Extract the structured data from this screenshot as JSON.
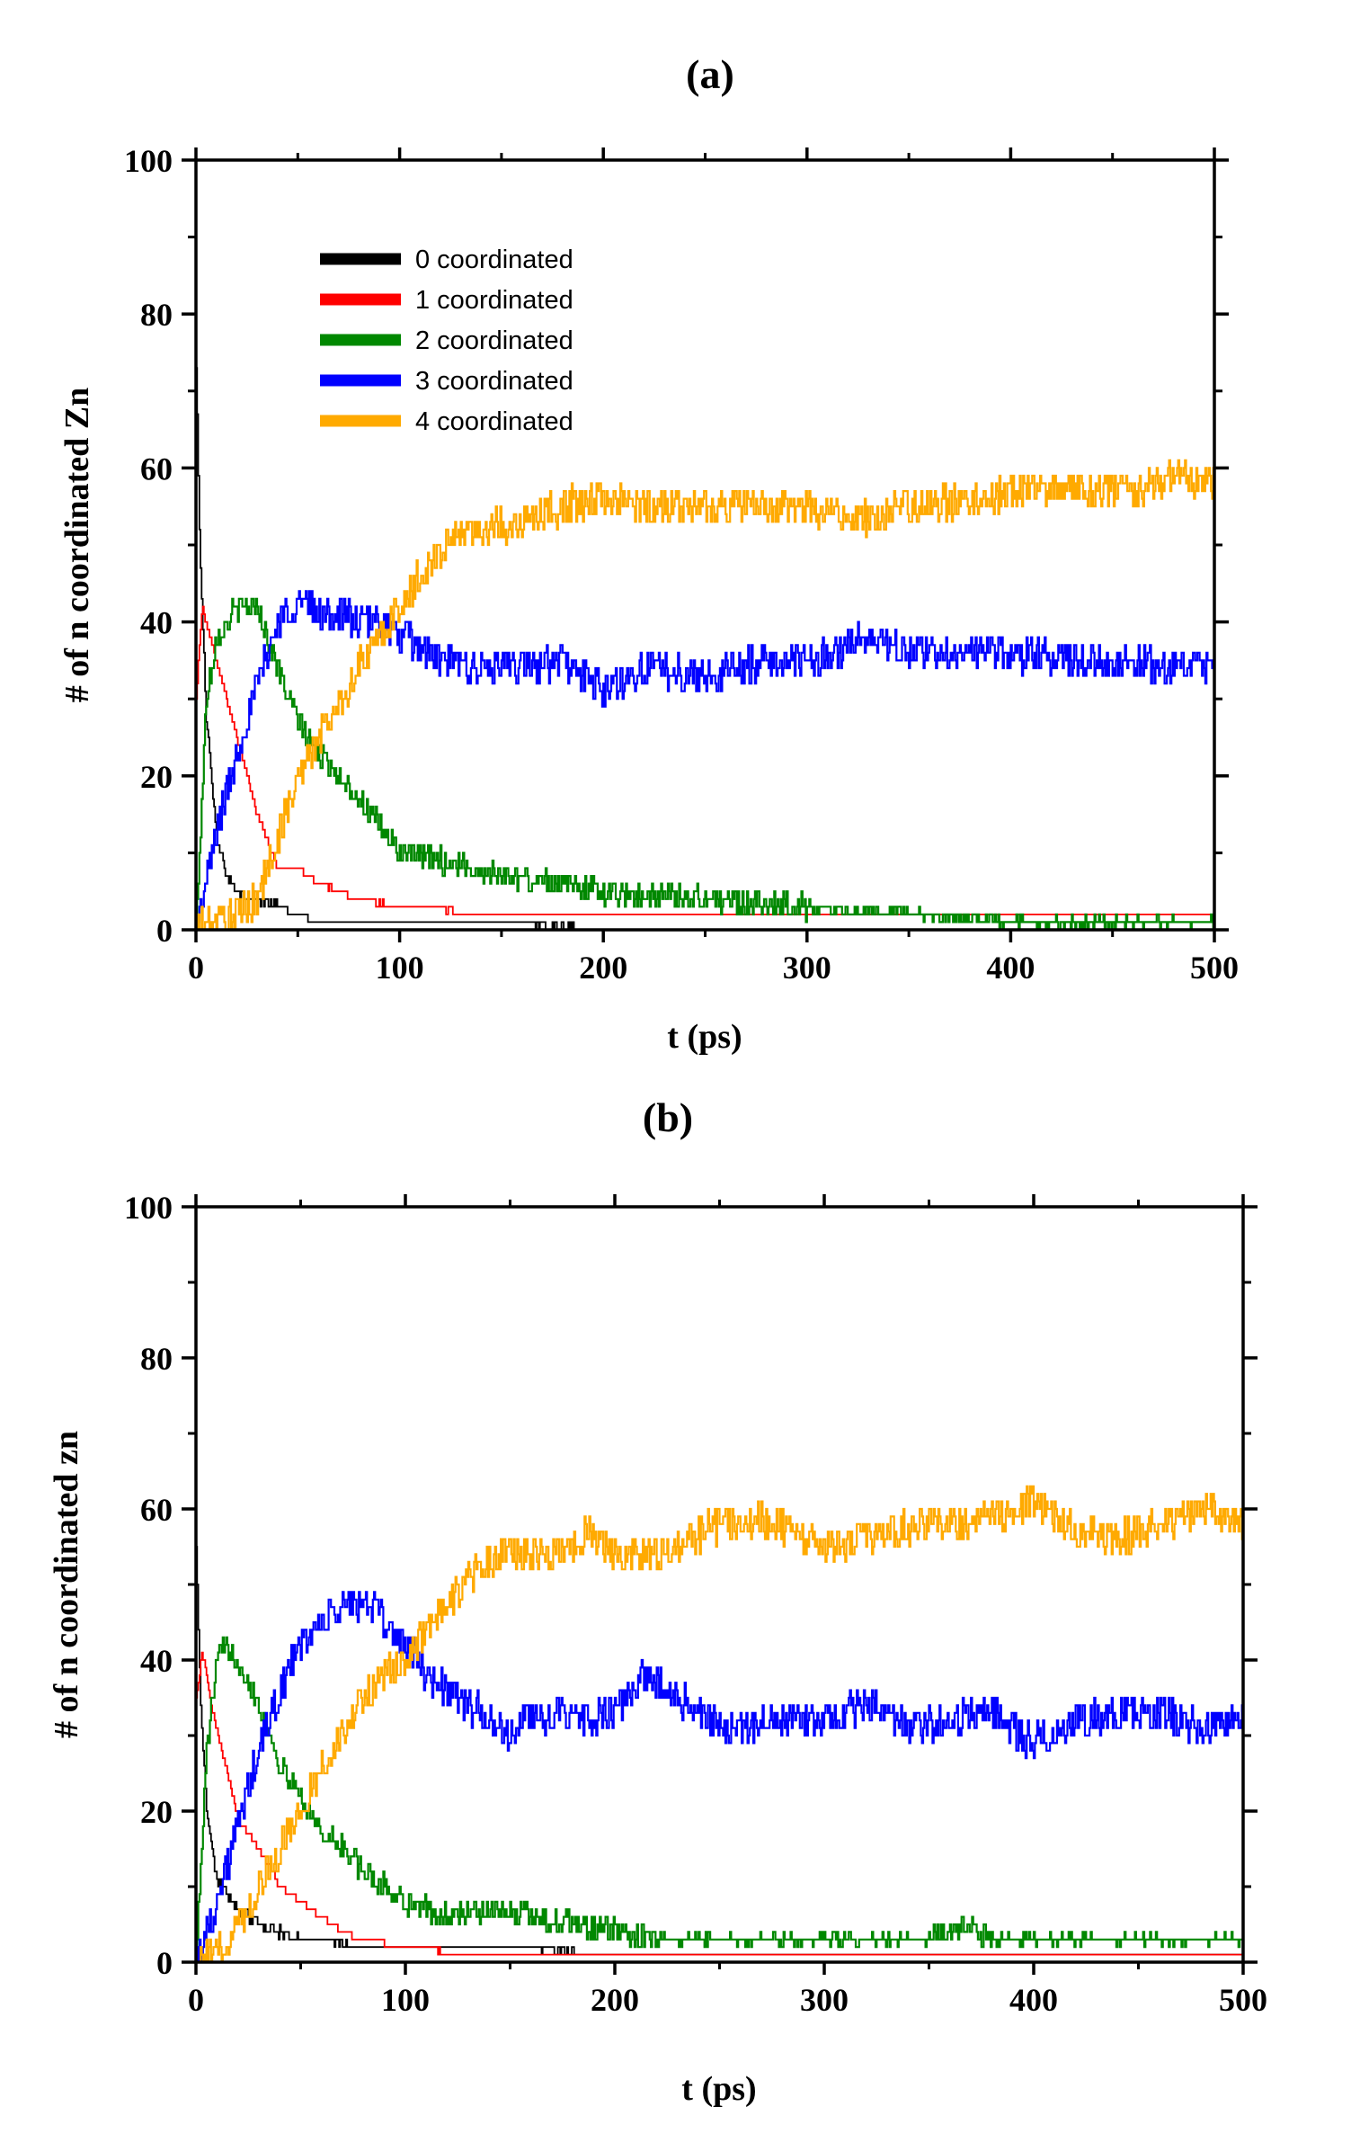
{
  "chart_data": [
    {
      "panel": "(a)",
      "type": "line",
      "xlabel": "t (ps)",
      "ylabel": "# of n coordinated Zn",
      "xlim": [
        0,
        500
      ],
      "ylim": [
        0,
        100
      ],
      "xticks": [
        0,
        100,
        200,
        300,
        400,
        500
      ],
      "yticks": [
        0,
        20,
        40,
        60,
        80,
        100
      ],
      "legend_position": "top-left",
      "series": [
        {
          "name": "0 coordinated",
          "color": "#000000",
          "x": [
            0,
            2,
            5,
            10,
            15,
            20,
            30,
            40,
            50,
            60,
            80,
            100,
            150,
            200,
            300,
            400,
            500
          ],
          "y": [
            73,
            48,
            28,
            12,
            7,
            5,
            4,
            3,
            2,
            1,
            1,
            1,
            1,
            0,
            0,
            0,
            0
          ]
        },
        {
          "name": "1 coordinated",
          "color": "#ff0000",
          "x": [
            0,
            3,
            8,
            15,
            20,
            30,
            40,
            50,
            60,
            80,
            100,
            150,
            190,
            300,
            400,
            500
          ],
          "y": [
            30,
            42,
            37,
            30,
            25,
            15,
            8,
            8,
            6,
            4,
            3,
            2,
            2,
            2,
            2,
            2
          ]
        },
        {
          "name": "2 coordinated",
          "color": "#008800",
          "x": [
            0,
            5,
            10,
            20,
            30,
            40,
            50,
            60,
            70,
            80,
            100,
            120,
            150,
            180,
            200,
            250,
            300,
            350,
            400,
            450,
            500
          ],
          "y": [
            0,
            30,
            38,
            42,
            42,
            34,
            27,
            23,
            20,
            17,
            10,
            9,
            7,
            6,
            5,
            4,
            3,
            2,
            1,
            1,
            1
          ]
        },
        {
          "name": "3 coordinated",
          "color": "#0000ff",
          "x": [
            0,
            5,
            10,
            20,
            30,
            40,
            50,
            60,
            70,
            80,
            90,
            100,
            120,
            140,
            160,
            180,
            200,
            220,
            250,
            280,
            300,
            330,
            350,
            380,
            400,
            430,
            460,
            480,
            500
          ],
          "y": [
            0,
            6,
            13,
            23,
            32,
            40,
            43,
            41,
            41,
            40,
            40,
            38,
            35,
            34,
            34,
            35,
            31,
            34,
            33,
            35,
            35,
            38,
            36,
            36,
            36,
            35,
            35,
            34,
            34
          ]
        },
        {
          "name": "4 coordinated",
          "color": "#ffaa00",
          "x": [
            0,
            10,
            20,
            30,
            40,
            50,
            60,
            70,
            80,
            90,
            100,
            110,
            120,
            130,
            140,
            160,
            180,
            200,
            220,
            250,
            280,
            300,
            330,
            350,
            380,
            400,
            430,
            460,
            480,
            500
          ],
          "y": [
            0,
            1,
            2,
            4,
            12,
            20,
            25,
            29,
            34,
            38,
            42,
            46,
            49,
            52,
            52,
            53,
            55,
            56,
            55,
            55,
            55,
            55,
            53,
            55,
            56,
            57,
            57,
            57,
            59,
            58
          ]
        }
      ]
    },
    {
      "panel": "(b)",
      "type": "line",
      "xlabel": "t (ps)",
      "ylabel": "# of n coordinated zn",
      "xlim": [
        0,
        500
      ],
      "ylim": [
        0,
        100
      ],
      "xticks": [
        0,
        100,
        200,
        300,
        400,
        500
      ],
      "yticks": [
        0,
        20,
        40,
        60,
        80,
        100
      ],
      "series": [
        {
          "name": "0 coordinated",
          "color": "#000000",
          "x": [
            0,
            2,
            5,
            10,
            15,
            20,
            30,
            40,
            50,
            60,
            80,
            100,
            150,
            200,
            250,
            300,
            400,
            500
          ],
          "y": [
            56,
            35,
            20,
            11,
            9,
            7,
            5,
            4,
            3,
            3,
            2,
            2,
            2,
            1,
            1,
            1,
            1,
            1
          ]
        },
        {
          "name": "1 coordinated",
          "color": "#ff0000",
          "x": [
            0,
            3,
            8,
            15,
            20,
            30,
            40,
            50,
            60,
            70,
            80,
            100,
            130,
            200,
            270,
            300,
            400,
            500
          ],
          "y": [
            35,
            41,
            33,
            25,
            19,
            15,
            10,
            8,
            6,
            4,
            3,
            2,
            1,
            1,
            1,
            1,
            1,
            1
          ]
        },
        {
          "name": "2 coordinated",
          "color": "#008800",
          "x": [
            0,
            5,
            10,
            15,
            20,
            30,
            40,
            50,
            60,
            70,
            80,
            100,
            120,
            140,
            160,
            180,
            200,
            220,
            250,
            300,
            350,
            365,
            380,
            400,
            450,
            500
          ],
          "y": [
            0,
            28,
            40,
            42,
            40,
            34,
            26,
            22,
            17,
            15,
            12,
            8,
            6,
            7,
            6,
            5,
            4,
            3,
            3,
            3,
            3,
            5,
            3,
            3,
            3,
            3
          ]
        },
        {
          "name": "3 coordinated",
          "color": "#0000ff",
          "x": [
            0,
            10,
            20,
            30,
            40,
            50,
            60,
            70,
            80,
            90,
            100,
            110,
            120,
            140,
            150,
            160,
            180,
            200,
            215,
            230,
            250,
            270,
            300,
            320,
            340,
            360,
            380,
            400,
            420,
            440,
            460,
            480,
            500
          ],
          "y": [
            0,
            8,
            18,
            28,
            36,
            42,
            45,
            47,
            48,
            45,
            42,
            38,
            36,
            32,
            30,
            33,
            32,
            33,
            38,
            35,
            31,
            32,
            32,
            34,
            31,
            32,
            33,
            29,
            32,
            33,
            33,
            31,
            33
          ]
        },
        {
          "name": "4 coordinated",
          "color": "#ffaa00",
          "x": [
            0,
            10,
            20,
            30,
            40,
            50,
            60,
            70,
            80,
            90,
            100,
            110,
            120,
            130,
            140,
            150,
            170,
            190,
            200,
            220,
            250,
            270,
            290,
            300,
            330,
            350,
            370,
            400,
            420,
            440,
            460,
            480,
            500
          ],
          "y": [
            0,
            1,
            5,
            10,
            15,
            20,
            26,
            30,
            35,
            38,
            40,
            44,
            47,
            51,
            53,
            54,
            54,
            57,
            54,
            54,
            58,
            59,
            56,
            55,
            57,
            58,
            58,
            61,
            57,
            56,
            58,
            60,
            58
          ]
        }
      ]
    }
  ]
}
